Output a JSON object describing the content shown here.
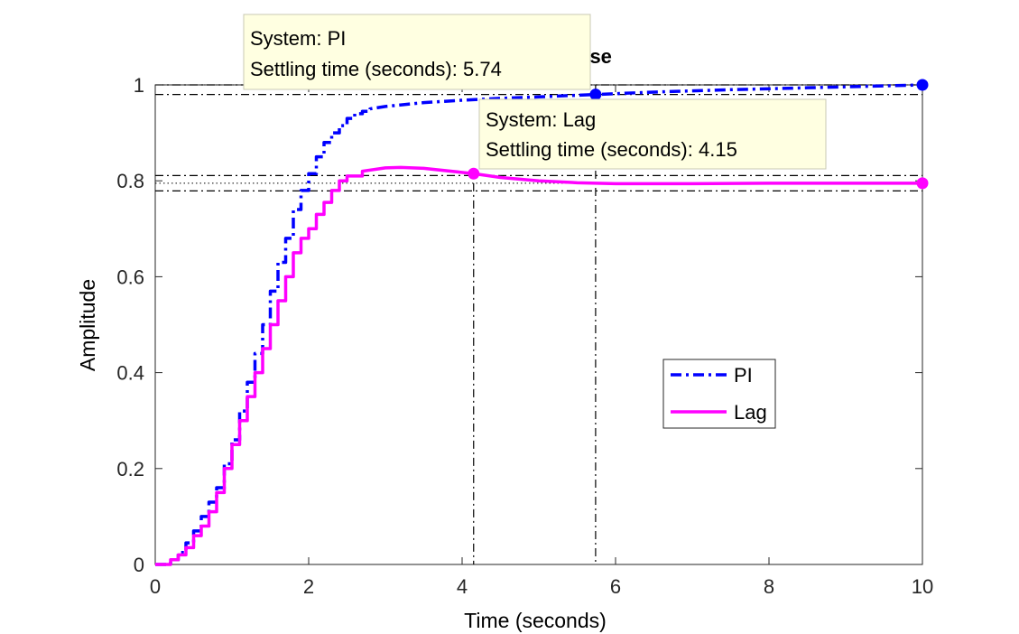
{
  "chart_data": {
    "type": "line",
    "title_visible_fragment": "nse",
    "xlabel": "Time (seconds)",
    "ylabel": "Amplitude",
    "xlim": [
      0,
      10
    ],
    "ylim": [
      0,
      1
    ],
    "xticks": [
      0,
      2,
      4,
      6,
      8,
      10
    ],
    "yticks": [
      0,
      0.2,
      0.4,
      0.6,
      0.8,
      1
    ],
    "grid": false,
    "legend_position": "lower-right (inside axes)",
    "series": [
      {
        "name": "PI",
        "color": "#0000ff",
        "style": "dash-dot",
        "final_value": 1.0,
        "settling_time": 5.74,
        "points": [
          [
            0,
            0
          ],
          [
            0.1,
            0.0
          ],
          [
            0.2,
            0.01
          ],
          [
            0.3,
            0.025
          ],
          [
            0.4,
            0.045
          ],
          [
            0.5,
            0.07
          ],
          [
            0.6,
            0.1
          ],
          [
            0.7,
            0.13
          ],
          [
            0.8,
            0.16
          ],
          [
            0.9,
            0.21
          ],
          [
            1.0,
            0.26
          ],
          [
            1.1,
            0.32
          ],
          [
            1.2,
            0.38
          ],
          [
            1.3,
            0.44
          ],
          [
            1.4,
            0.5
          ],
          [
            1.5,
            0.57
          ],
          [
            1.6,
            0.63
          ],
          [
            1.7,
            0.68
          ],
          [
            1.8,
            0.74
          ],
          [
            1.9,
            0.78
          ],
          [
            2.0,
            0.815
          ],
          [
            2.1,
            0.85
          ],
          [
            2.2,
            0.88
          ],
          [
            2.3,
            0.9
          ],
          [
            2.4,
            0.915
          ],
          [
            2.5,
            0.93
          ],
          [
            2.6,
            0.94
          ],
          [
            2.7,
            0.945
          ],
          [
            2.8,
            0.95
          ],
          [
            3.0,
            0.955
          ],
          [
            3.5,
            0.963
          ],
          [
            4.0,
            0.968
          ],
          [
            4.5,
            0.972
          ],
          [
            5.0,
            0.975
          ],
          [
            5.74,
            0.98
          ],
          [
            6.5,
            0.985
          ],
          [
            7.5,
            0.99
          ],
          [
            8.5,
            0.994
          ],
          [
            10,
            1.0
          ]
        ]
      },
      {
        "name": "Lag",
        "color": "#ff00ff",
        "style": "solid",
        "final_value": 0.795,
        "settling_time": 4.15,
        "points": [
          [
            0,
            0
          ],
          [
            0.1,
            0.0
          ],
          [
            0.2,
            0.01
          ],
          [
            0.3,
            0.02
          ],
          [
            0.4,
            0.035
          ],
          [
            0.5,
            0.06
          ],
          [
            0.6,
            0.08
          ],
          [
            0.7,
            0.11
          ],
          [
            0.8,
            0.15
          ],
          [
            0.9,
            0.2
          ],
          [
            1.0,
            0.25
          ],
          [
            1.1,
            0.3
          ],
          [
            1.2,
            0.35
          ],
          [
            1.3,
            0.4
          ],
          [
            1.4,
            0.45
          ],
          [
            1.5,
            0.5
          ],
          [
            1.6,
            0.55
          ],
          [
            1.7,
            0.6
          ],
          [
            1.8,
            0.65
          ],
          [
            1.9,
            0.68
          ],
          [
            2.0,
            0.7
          ],
          [
            2.1,
            0.73
          ],
          [
            2.2,
            0.755
          ],
          [
            2.3,
            0.78
          ],
          [
            2.4,
            0.8
          ],
          [
            2.5,
            0.81
          ],
          [
            2.7,
            0.82
          ],
          [
            3.0,
            0.827
          ],
          [
            3.2,
            0.828
          ],
          [
            3.5,
            0.826
          ],
          [
            4.15,
            0.815
          ],
          [
            4.5,
            0.807
          ],
          [
            5.0,
            0.8
          ],
          [
            5.5,
            0.796
          ],
          [
            6.0,
            0.794
          ],
          [
            7.0,
            0.794
          ],
          [
            8.0,
            0.795
          ],
          [
            9.0,
            0.795
          ],
          [
            10,
            0.795
          ]
        ]
      }
    ],
    "settling_bands": {
      "PI": {
        "upper": 1.0,
        "lower": 0.98
      },
      "Lag": {
        "upper": 0.811,
        "lower": 0.779
      }
    },
    "steady_state_dotted": [
      1.0,
      0.795
    ],
    "markers": [
      {
        "series": "PI",
        "x": 5.74,
        "y": 0.98
      },
      {
        "series": "PI",
        "x": 10,
        "y": 1.0
      },
      {
        "series": "Lag",
        "x": 4.15,
        "y": 0.815
      },
      {
        "series": "Lag",
        "x": 10,
        "y": 0.795
      }
    ],
    "datatips": [
      {
        "line1": "System: PI",
        "line2": "Settling time (seconds): 5.74"
      },
      {
        "line1": "System: Lag",
        "line2": "Settling time (seconds): 4.15"
      }
    ],
    "legend": [
      "PI",
      "Lag"
    ]
  }
}
